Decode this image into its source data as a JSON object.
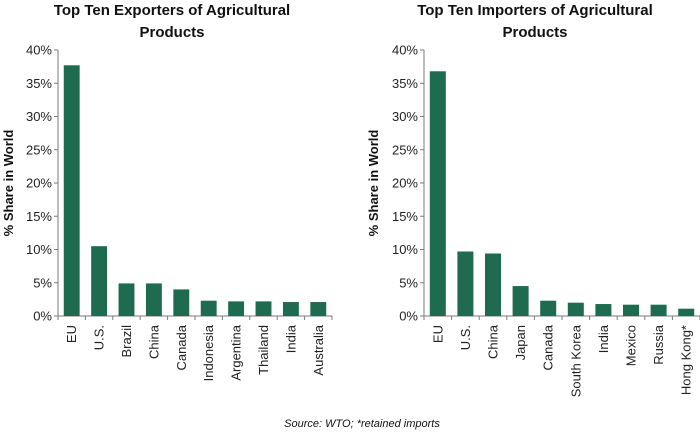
{
  "colors": {
    "bar": "#1f6b4f"
  },
  "source_text": "Source: WTO; *retained imports",
  "chart_data": [
    {
      "type": "bar",
      "title_line1": "Top Ten Exporters of Agricultural",
      "title_line2": "Products",
      "ylabel": "% Share in World",
      "ylim": [
        0,
        40
      ],
      "yticks": [
        "0%",
        "5%",
        "10%",
        "15%",
        "20%",
        "25%",
        "30%",
        "35%",
        "40%"
      ],
      "categories": [
        "EU",
        "U.S.",
        "Brazil",
        "China",
        "Canada",
        "Indonesia",
        "Argentina",
        "Thailand",
        "India",
        "Australia"
      ],
      "values": [
        37.7,
        10.5,
        4.9,
        4.9,
        4.0,
        2.3,
        2.2,
        2.2,
        2.1,
        2.1
      ],
      "grid": false
    },
    {
      "type": "bar",
      "title_line1": "Top Ten Importers of Agricultural",
      "title_line2": "Products",
      "ylabel": "% Share in World",
      "ylim": [
        0,
        40
      ],
      "yticks": [
        "0%",
        "5%",
        "10%",
        "15%",
        "20%",
        "25%",
        "30%",
        "35%",
        "40%"
      ],
      "categories": [
        "EU",
        "U.S.",
        "China",
        "Japan",
        "Canada",
        "South Korea",
        "India",
        "Mexico",
        "Russia",
        "Hong Kong*"
      ],
      "values": [
        36.8,
        9.7,
        9.4,
        4.5,
        2.3,
        2.0,
        1.8,
        1.7,
        1.7,
        1.1
      ],
      "grid": false
    }
  ]
}
